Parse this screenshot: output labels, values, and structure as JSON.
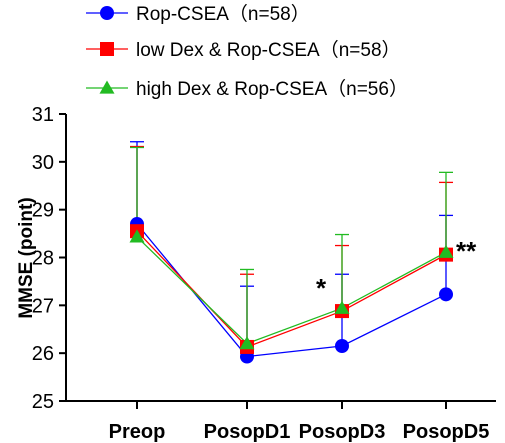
{
  "chart_data": {
    "type": "line",
    "categories": [
      "Preop",
      "PosopD1",
      "PosopD3",
      "PosopD5"
    ],
    "ylabel": "MMSE (point)",
    "ylim": [
      25,
      31
    ],
    "yticks": [
      "25",
      "26",
      "27",
      "28",
      "29",
      "30",
      "31"
    ],
    "legend_position": "top-left",
    "grid": false,
    "series": [
      {
        "name": "Rop-CSEA（n=58）",
        "color": "#0000ff",
        "marker": "circle",
        "values": [
          28.7,
          25.93,
          26.15,
          27.23
        ],
        "error_up": [
          30.42,
          27.4,
          27.65,
          28.88
        ]
      },
      {
        "name": "low Dex & Rop-CSEA（n=58）",
        "color": "#ff0000",
        "marker": "square",
        "values": [
          28.55,
          26.13,
          26.88,
          28.06
        ],
        "error_up": [
          30.32,
          27.65,
          28.25,
          29.57
        ]
      },
      {
        "name": "high Dex & Rop-CSEA（n=56）",
        "color": "#22bb22",
        "marker": "triangle",
        "values": [
          28.43,
          26.2,
          26.94,
          28.11
        ],
        "error_up": [
          30.3,
          27.75,
          28.48,
          29.78
        ]
      }
    ],
    "annotations": [
      {
        "category": "PosopD3",
        "text": "*"
      },
      {
        "category": "PosopD5",
        "text": "**"
      }
    ]
  }
}
